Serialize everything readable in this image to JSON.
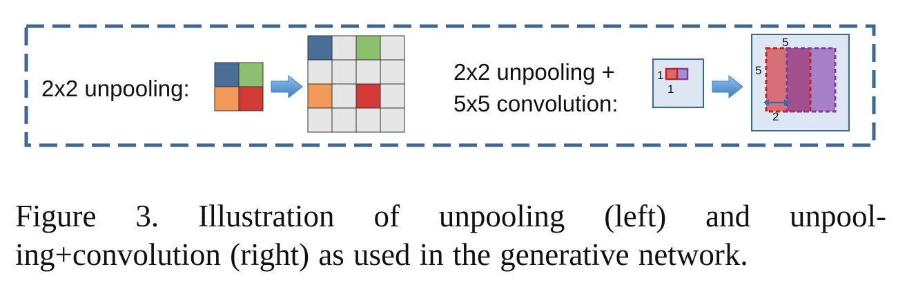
{
  "left_label": "2x2 unpooling:",
  "right_label": {
    "line1": "2x2 unpooling +",
    "line2": "5x5 convolution:"
  },
  "small_map": {
    "label_left": "1",
    "label_bottom": "1"
  },
  "large_map": {
    "label_top": "5",
    "label_left": "5",
    "label_bottom": "2"
  },
  "caption": {
    "line1": "Figure 3. Illustration of unpooling (left) and unpool-",
    "line2": "ing+convolution (right) as used in the generative network."
  },
  "colors": {
    "blue": "#4a6e97",
    "green": "#8cc06e",
    "orange": "#f39a5a",
    "red": "#d33a35",
    "empty_cell": "#e6e6e6",
    "frame": "#3d6690",
    "panel": "#dde7f3",
    "arrow": "#4f8fcf",
    "purple": "#7a3fa0"
  }
}
